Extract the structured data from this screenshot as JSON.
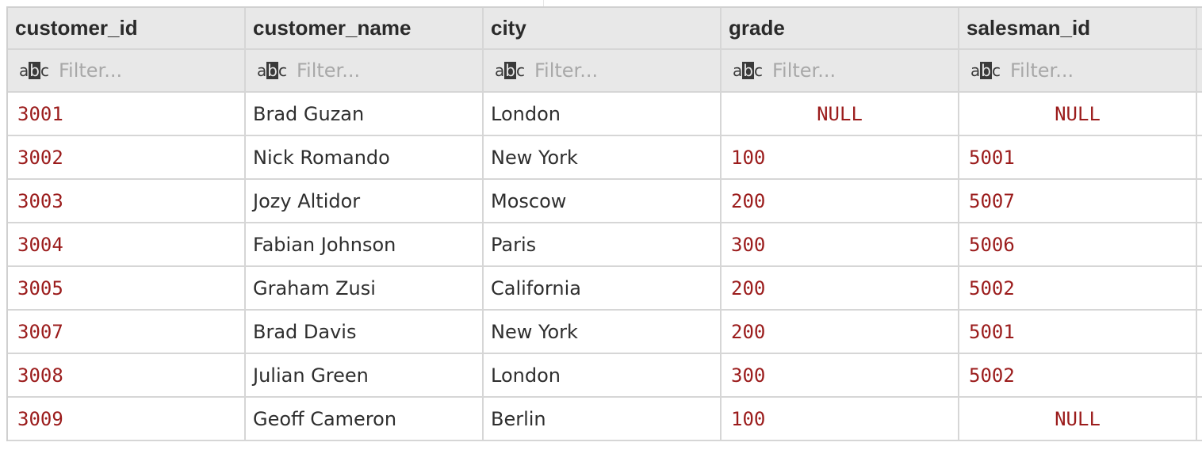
{
  "columns": [
    {
      "name": "customer_id",
      "filter_placeholder": "Filter..."
    },
    {
      "name": "customer_name",
      "filter_placeholder": "Filter..."
    },
    {
      "name": "city",
      "filter_placeholder": "Filter..."
    },
    {
      "name": "grade",
      "filter_placeholder": "Filter..."
    },
    {
      "name": "salesman_id",
      "filter_placeholder": "Filter..."
    }
  ],
  "type_icon": {
    "a": "a",
    "b": "b",
    "c": "c"
  },
  "rows": [
    [
      "3001",
      "Brad Guzan",
      "London",
      "NULL",
      "NULL"
    ],
    [
      "3002",
      "Nick Romando",
      "New York",
      "100",
      "5001"
    ],
    [
      "3003",
      "Jozy Altidor",
      "Moscow",
      "200",
      "5007"
    ],
    [
      "3004",
      "Fabian Johnson",
      "Paris",
      "300",
      "5006"
    ],
    [
      "3005",
      "Graham Zusi",
      "California",
      "200",
      "5002"
    ],
    [
      "3007",
      "Brad Davis",
      "New York",
      "200",
      "5001"
    ],
    [
      "3008",
      "Julian Green",
      "London",
      "300",
      "5002"
    ],
    [
      "3009",
      "Geoff Cameron",
      "Berlin",
      "100",
      "NULL"
    ]
  ],
  "colors": {
    "number": "#9b1c1c",
    "text": "#2e2e2e",
    "header_bg": "#e8e8e8",
    "border": "#d6d6d6"
  }
}
